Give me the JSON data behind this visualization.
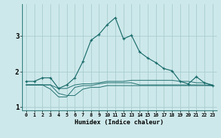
{
  "xlabel": "Humidex (Indice chaleur)",
  "background_color": "#cde8ea",
  "grid_color": "#aacfd2",
  "line_color": "#1a6b6b",
  "x_values": [
    0,
    1,
    2,
    3,
    4,
    5,
    6,
    7,
    8,
    9,
    10,
    11,
    12,
    13,
    14,
    15,
    16,
    17,
    18,
    19,
    20,
    21,
    22,
    23
  ],
  "main_line": [
    1.72,
    1.72,
    1.82,
    1.82,
    1.52,
    1.62,
    1.82,
    2.28,
    2.88,
    3.05,
    3.32,
    3.52,
    2.92,
    3.02,
    2.55,
    2.38,
    2.25,
    2.08,
    2.02,
    1.72,
    1.65,
    1.85,
    1.68,
    1.6
  ],
  "flat_line1": [
    1.62,
    1.62,
    1.62,
    1.62,
    1.52,
    1.52,
    1.62,
    1.65,
    1.65,
    1.68,
    1.72,
    1.72,
    1.72,
    1.75,
    1.75,
    1.75,
    1.75,
    1.75,
    1.75,
    1.72,
    1.72,
    1.68,
    1.68,
    1.62
  ],
  "flat_line2": [
    1.62,
    1.62,
    1.62,
    1.62,
    1.38,
    1.32,
    1.32,
    1.5,
    1.55,
    1.55,
    1.6,
    1.6,
    1.6,
    1.6,
    1.6,
    1.6,
    1.6,
    1.6,
    1.6,
    1.6,
    1.6,
    1.6,
    1.6,
    1.6
  ],
  "flat_line3": [
    1.62,
    1.62,
    1.62,
    1.5,
    1.28,
    1.28,
    1.55,
    1.6,
    1.6,
    1.65,
    1.68,
    1.68,
    1.68,
    1.68,
    1.62,
    1.62,
    1.62,
    1.62,
    1.62,
    1.62,
    1.62,
    1.62,
    1.62,
    1.6
  ],
  "ylim": [
    0.9,
    3.9
  ],
  "yticks": [
    1,
    2,
    3
  ],
  "xticks": [
    0,
    1,
    2,
    3,
    4,
    5,
    6,
    7,
    8,
    9,
    10,
    11,
    12,
    13,
    14,
    15,
    16,
    17,
    18,
    19,
    20,
    21,
    22,
    23
  ]
}
